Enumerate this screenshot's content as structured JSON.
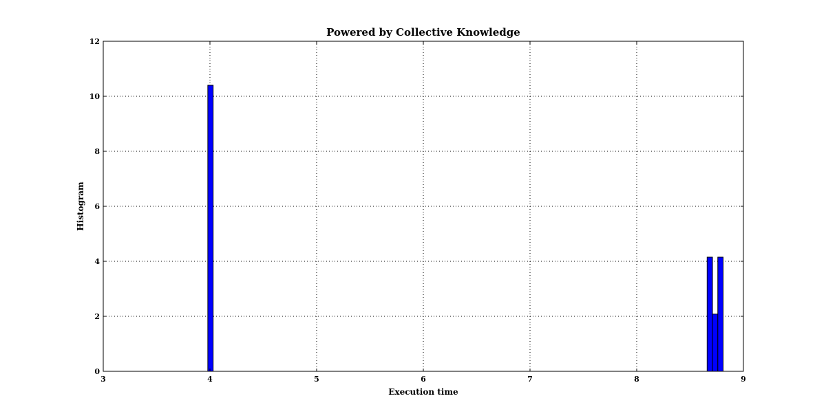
{
  "chart_data": {
    "type": "bar",
    "title": "Powered by Collective Knowledge",
    "xlabel": "Execution time",
    "ylabel": "Histogram",
    "xlim": [
      3,
      9
    ],
    "ylim": [
      0,
      12
    ],
    "xticks": [
      "3",
      "4",
      "5",
      "6",
      "7",
      "8",
      "9"
    ],
    "yticks": [
      "0",
      "2",
      "4",
      "6",
      "8",
      "10",
      "12"
    ],
    "grid": true,
    "bar_color": "#0000ff",
    "bars": [
      {
        "x0": 3.98,
        "x1": 4.03,
        "value": 10.4
      },
      {
        "x0": 8.66,
        "x1": 8.71,
        "value": 4.15
      },
      {
        "x0": 8.71,
        "x1": 8.76,
        "value": 2.08
      },
      {
        "x0": 8.76,
        "x1": 8.81,
        "value": 4.15
      }
    ]
  }
}
